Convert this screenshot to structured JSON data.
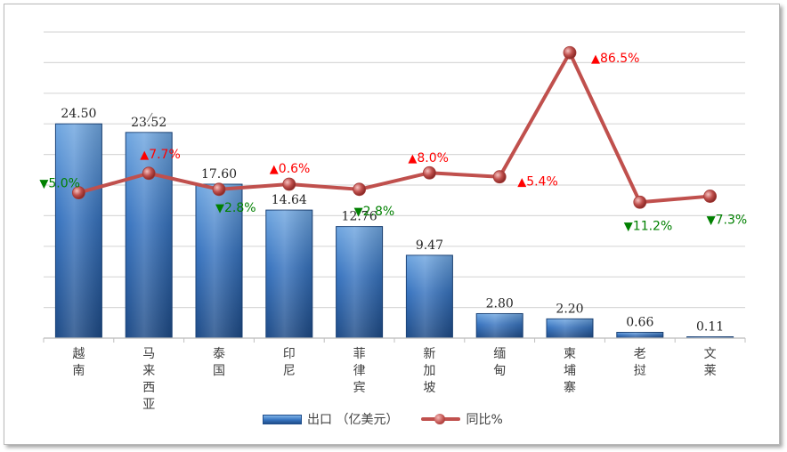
{
  "chart_data": {
    "type": "bar+line",
    "categories": [
      "越南",
      "马来西亚",
      "泰国",
      "印尼",
      "菲律宾",
      "新加坡",
      "缅甸",
      "柬埔寨",
      "老挝",
      "文莱"
    ],
    "series": [
      {
        "name": "出口（亿美元）",
        "type": "bar",
        "values": [
          24.5,
          23.52,
          17.6,
          14.64,
          12.76,
          9.47,
          2.8,
          2.2,
          0.66,
          0.11
        ],
        "labels": [
          "24.50",
          "23.52",
          "17.60",
          "14.64",
          "12.76",
          "9.47",
          "2.80",
          "2.20",
          "0.66",
          "0.11"
        ]
      },
      {
        "name": "同比%",
        "type": "line",
        "values": [
          -5.0,
          7.7,
          -2.8,
          0.6,
          -2.8,
          8.0,
          5.4,
          86.5,
          -11.2,
          -7.3
        ],
        "labels": [
          "5.0%",
          "7.7%",
          "2.8%",
          "0.6%",
          "2.8%",
          "8.0%",
          "5.4%",
          "86.5%",
          "11.2%",
          "7.3%"
        ]
      }
    ],
    "bar_ylim": [
      0,
      35
    ],
    "line_ylim": [
      -100,
      100
    ],
    "grid": true,
    "legend_position": "bottom",
    "colors": {
      "bar": "#2e64a8",
      "line": "#c0504d",
      "up": "#ff0000",
      "down": "#008000"
    }
  },
  "legend": {
    "bar_label": "出口  （亿美元）",
    "line_label": "同比%"
  }
}
